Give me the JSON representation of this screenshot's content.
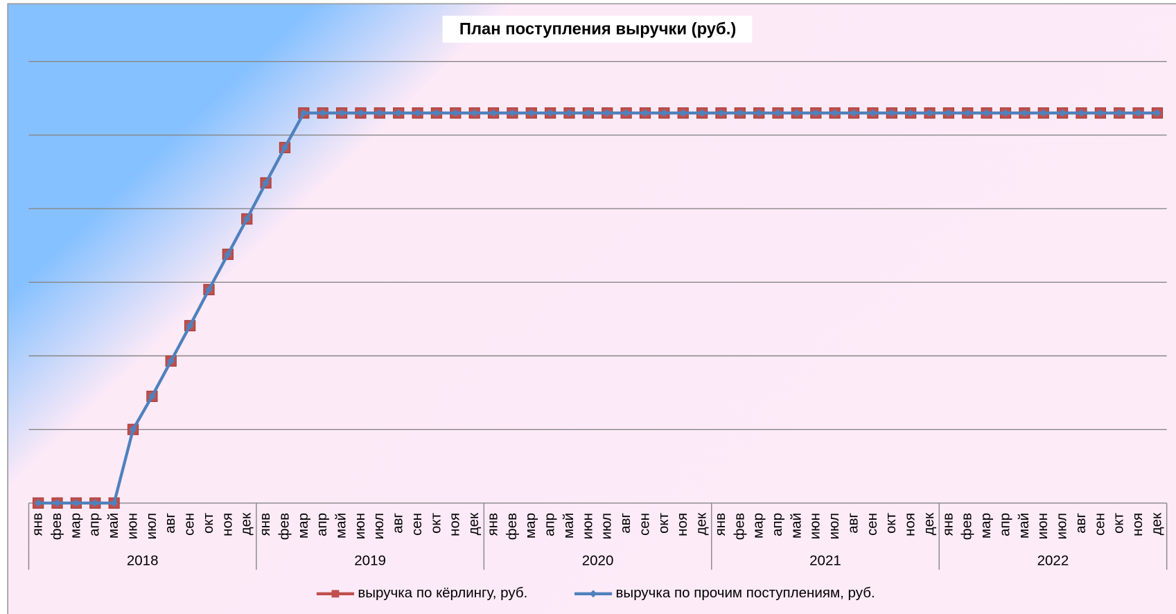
{
  "chart_data": {
    "type": "line",
    "title": "План поступления выручки (руб.)",
    "categories": [
      "янв",
      "фев",
      "мар",
      "апр",
      "май",
      "июн",
      "июл",
      "авг",
      "сен",
      "окт",
      "ноя",
      "дек",
      "янв",
      "фев",
      "мар",
      "апр",
      "май",
      "июн",
      "июл",
      "авг",
      "сен",
      "окт",
      "ноя",
      "дек",
      "янв",
      "фев",
      "мар",
      "апр",
      "май",
      "июн",
      "июл",
      "авг",
      "сен",
      "окт",
      "ноя",
      "дек",
      "янв",
      "фев",
      "мар",
      "апр",
      "май",
      "июн",
      "июл",
      "авг",
      "сен",
      "окт",
      "ноя",
      "дек",
      "янв",
      "фев",
      "мар",
      "апр",
      "май",
      "июн",
      "июл",
      "авг",
      "сен",
      "окт",
      "ноя",
      "дек"
    ],
    "groups": [
      "2018",
      "2019",
      "2020",
      "2021",
      "2022"
    ],
    "series": [
      {
        "name": "выручка по кёрлингу, руб.",
        "color": "#c0504d",
        "marker": "square",
        "values": [
          0,
          0,
          0,
          0,
          0,
          1,
          1.45,
          1.93,
          2.41,
          2.9,
          3.38,
          3.86,
          4.35,
          4.83,
          5.3,
          5.3,
          5.3,
          5.3,
          5.3,
          5.3,
          5.3,
          5.3,
          5.3,
          5.3,
          5.3,
          5.3,
          5.3,
          5.3,
          5.3,
          5.3,
          5.3,
          5.3,
          5.3,
          5.3,
          5.3,
          5.3,
          5.3,
          5.3,
          5.3,
          5.3,
          5.3,
          5.3,
          5.3,
          5.3,
          5.3,
          5.3,
          5.3,
          5.3,
          5.3,
          5.3,
          5.3,
          5.3,
          5.3,
          5.3,
          5.3,
          5.3,
          5.3,
          5.3,
          5.3,
          5.3
        ]
      },
      {
        "name": "выручка по прочим поступлениям, руб.",
        "color": "#4f81bd",
        "marker": "diamond",
        "values": [
          0,
          0,
          0,
          0,
          0,
          1,
          1.45,
          1.93,
          2.41,
          2.9,
          3.38,
          3.86,
          4.35,
          4.83,
          5.3,
          5.3,
          5.3,
          5.3,
          5.3,
          5.3,
          5.3,
          5.3,
          5.3,
          5.3,
          5.3,
          5.3,
          5.3,
          5.3,
          5.3,
          5.3,
          5.3,
          5.3,
          5.3,
          5.3,
          5.3,
          5.3,
          5.3,
          5.3,
          5.3,
          5.3,
          5.3,
          5.3,
          5.3,
          5.3,
          5.3,
          5.3,
          5.3,
          5.3,
          5.3,
          5.3,
          5.3,
          5.3,
          5.3,
          5.3,
          5.3,
          5.3,
          5.3,
          5.3,
          5.3,
          5.3
        ]
      }
    ],
    "ylim": [
      0,
      6
    ],
    "yticks": [
      0,
      1,
      2,
      3,
      4,
      5,
      6
    ],
    "grid": true,
    "legend": "bottom"
  }
}
